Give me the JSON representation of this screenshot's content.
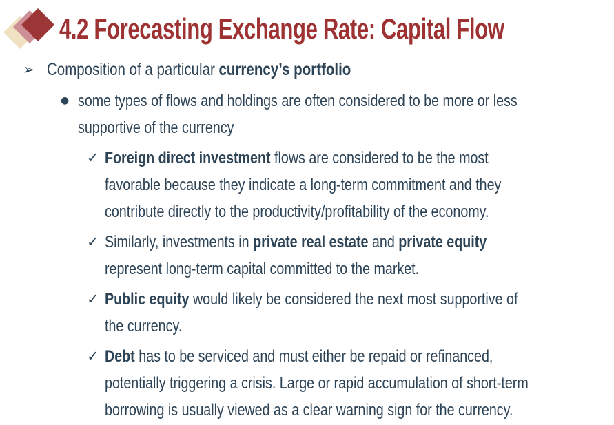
{
  "colors": {
    "title_red": "#9E3132",
    "body_navy": "#2D4356",
    "diamond_cream": "#F1E1C3",
    "diamond_rose": "#CD8E95",
    "diamond_red": "#9B3536",
    "page_bg": "#FFFFFF"
  },
  "header": {
    "title": "4.2 Forecasting Exchange Rate: Capital Flow"
  },
  "glyphs": {
    "level1_bullet": "➢",
    "level2_bullet": "●",
    "check_bullet": "✓"
  },
  "level1": {
    "segs": [
      {
        "t": "Composition of a particular "
      },
      {
        "t": "currency’s portfolio",
        "bold": true
      }
    ]
  },
  "level2": {
    "lines": [
      "some types of flows and holdings are often considered to be more or less",
      "supportive of the currency"
    ]
  },
  "check_items": [
    {
      "lines": [
        [
          {
            "t": "Foreign direct investment",
            "bold": true
          },
          {
            "t": " flows are considered to be the most"
          }
        ],
        [
          {
            "t": "favorable because they indicate a long-term commitment and they"
          }
        ],
        [
          {
            "t": "contribute directly to the productivity/profitability of the economy."
          }
        ]
      ]
    },
    {
      "lines": [
        [
          {
            "t": "Similarly, investments in "
          },
          {
            "t": "private real estate",
            "bold": true
          },
          {
            "t": " and "
          },
          {
            "t": "private equity",
            "bold": true
          }
        ],
        [
          {
            "t": "represent long-term capital committed to the market."
          }
        ]
      ]
    },
    {
      "lines": [
        [
          {
            "t": "Public equity",
            "bold": true
          },
          {
            "t": " would likely be considered the next most supportive of"
          }
        ],
        [
          {
            "t": "the currency."
          }
        ]
      ]
    },
    {
      "lines": [
        [
          {
            "t": "Debt",
            "bold": true
          },
          {
            "t": " has to be serviced and must either be repaid or refinanced,"
          }
        ],
        [
          {
            "t": "potentially triggering a crisis. Large or rapid accumulation of short-term"
          }
        ],
        [
          {
            "t": "borrowing is usually viewed as a clear warning sign for the currency."
          }
        ]
      ]
    }
  ]
}
